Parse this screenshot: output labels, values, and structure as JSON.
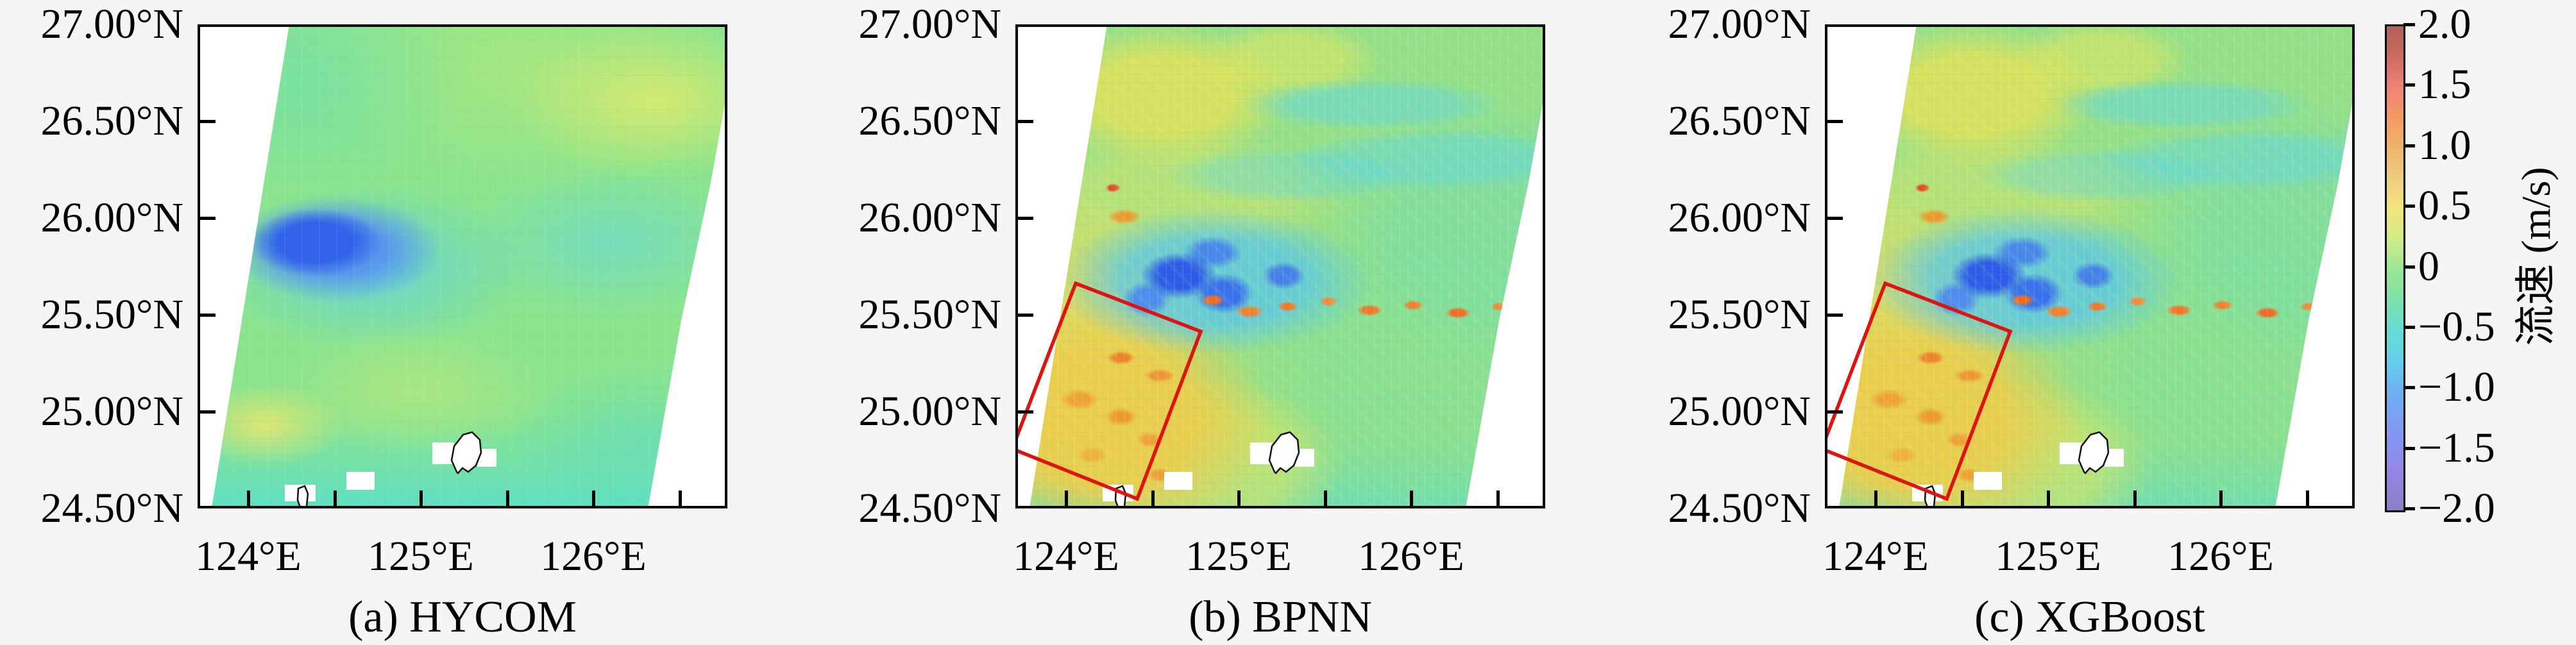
{
  "figure": {
    "description": "Three-panel comparison of sea-surface current speed maps over the East China Sea / Ryukyu region with a shared vertical colorbar",
    "background_color": "#f5f5f3",
    "panel_interior_color": "#ffffff",
    "highlight_box_color": "#dd1512"
  },
  "panels": [
    {
      "id": "a",
      "caption": "(a) HYCOM",
      "has_highlight_box": false
    },
    {
      "id": "b",
      "caption": "(b) BPNN",
      "has_highlight_box": true
    },
    {
      "id": "c",
      "caption": "(c) XGBoost",
      "has_highlight_box": true
    }
  ],
  "axes": {
    "lat_tick_labels": [
      "27.00°N",
      "26.50°N",
      "26.00°N",
      "25.50°N",
      "25.00°N",
      "24.50°N"
    ],
    "lon_tick_labels": [
      "124°E",
      "125°E",
      "126°E"
    ]
  },
  "colorbar": {
    "label": "流速 (m/s)",
    "tick_labels": [
      "2.0",
      "1.5",
      "1.0",
      "0.5",
      "0",
      "−0.5",
      "−1.0",
      "−1.5",
      "−2.0"
    ],
    "gradient_stops": [
      {
        "value": 2.0,
        "color": "#b25f5b"
      },
      {
        "value": 1.5,
        "color": "#ef8276"
      },
      {
        "value": 1.0,
        "color": "#efb36f"
      },
      {
        "value": 0.5,
        "color": "#f3e47c"
      },
      {
        "value": 0.0,
        "color": "#9ce695"
      },
      {
        "value": -0.5,
        "color": "#68dcd4"
      },
      {
        "value": -1.0,
        "color": "#6bb2f1"
      },
      {
        "value": -1.5,
        "color": "#8a8ff0"
      },
      {
        "value": -2.0,
        "color": "#8d7fc3"
      }
    ]
  },
  "chart_data": {
    "type": "heatmap",
    "title": "",
    "x_axis": {
      "label": "",
      "tick_labels": [
        "124°E",
        "125°E",
        "126°E"
      ],
      "range_deg_east_approx": [
        123.7,
        126.8
      ]
    },
    "y_axis": {
      "label": "",
      "tick_labels": [
        "27.00°N",
        "26.50°N",
        "26.00°N",
        "25.50°N",
        "25.00°N",
        "24.50°N"
      ],
      "range_deg_north": [
        24.5,
        27.0
      ]
    },
    "colorbar": {
      "label": "流速 (m/s)",
      "min": -2.0,
      "max": 2.0,
      "tick_step": 0.5
    },
    "legend_position": "right",
    "grid": false,
    "no_data_regions": "white tilted satellite-swath wedges along panel upper-left and lower-right edges; small white gaps with black island coastline outlines near 24.7–25.0°N, 124.5–125.4°E",
    "panels": [
      {
        "caption": "(a) HYCOM",
        "style": "smooth coarse-resolution model field, mostly 0 to +0.3 m/s light green",
        "features": [
          "dark blue negative patch (≈ −1.0 m/s) centered near 124.3°E, 25.8°N with cyan halo",
          "yellow areas (≈ +0.5 m/s) at top-right (≈126.4°E, 26.8°N) and near 124°E, 25.0°N",
          "cyan band (≈ −0.5 m/s) along the southern edge and lower-right"
        ]
      },
      {
        "caption": "(b) BPNN",
        "style": "fine-grained noisy satellite retrieval, speckled green/yellow/cyan",
        "features": [
          "blue negative cluster near 124.6°E, 25.7–26.0°N",
          "dotted orange/red streak row (≈ +1 m/s) just south of the blue cluster, ≈25.5°N",
          "broad yellow-orange high-speed area (≈ +0.5 to +1 m/s) in lower-left inside the red box",
          "rotated red highlight box spanning ≈123.7–124.8°E, 24.7–25.65°N",
          "yellow patch with orange flecks along upper-left swath edge"
        ]
      },
      {
        "caption": "(c) XGBoost",
        "style": "fine-grained noisy retrieval, nearly identical pattern to panel (b)",
        "features": [
          "same blue cluster, orange streak row, yellow-orange lower-left field and rotated red highlight box as panel (b)"
        ]
      }
    ]
  }
}
